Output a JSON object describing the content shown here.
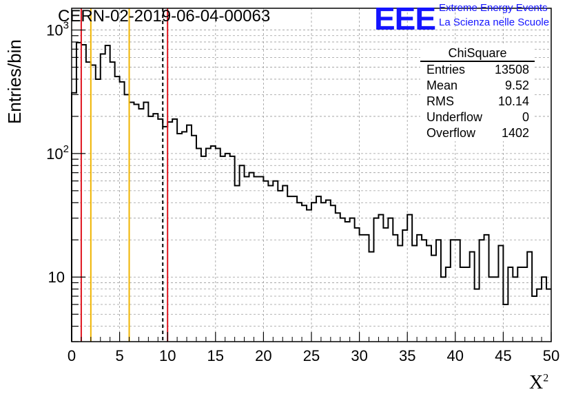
{
  "title": "CERN-02-2019-06-04-00063",
  "logo": {
    "mark": "EEE",
    "line1": "Extreme Energy Events",
    "line2": "La Scienza nelle Scuole",
    "color": "#1414ff"
  },
  "stats": {
    "title": "ChiSquare",
    "rows": [
      {
        "label": "Entries",
        "value": "13508"
      },
      {
        "label": "Mean",
        "value": "9.52"
      },
      {
        "label": "RMS",
        "value": "10.14"
      },
      {
        "label": "Underflow",
        "value": "0"
      },
      {
        "label": "Overflow",
        "value": "1402"
      }
    ]
  },
  "chart_data": {
    "type": "histogram",
    "ylabel": "Entries/bin",
    "xlabel": "X",
    "xlabel_sup": "2",
    "xlim": [
      0,
      50
    ],
    "ylim": [
      3,
      1500
    ],
    "yscale": "log",
    "grid": true,
    "x_ticks": [
      0,
      5,
      10,
      15,
      20,
      25,
      30,
      35,
      40,
      45,
      50
    ],
    "y_ticks": [
      {
        "value": 10,
        "label": "10",
        "sup": ""
      },
      {
        "value": 100,
        "label": "10",
        "sup": "2"
      },
      {
        "value": 1000,
        "label": "10",
        "sup": "3"
      }
    ],
    "bin_width": 0.5,
    "values": [
      310,
      790,
      760,
      550,
      520,
      400,
      640,
      750,
      550,
      420,
      380,
      300,
      260,
      250,
      230,
      260,
      200,
      210,
      190,
      165,
      180,
      190,
      145,
      150,
      170,
      140,
      110,
      95,
      110,
      115,
      110,
      95,
      100,
      95,
      55,
      80,
      65,
      70,
      65,
      65,
      60,
      55,
      60,
      50,
      55,
      45,
      45,
      40,
      38,
      35,
      40,
      45,
      40,
      42,
      38,
      33,
      30,
      28,
      30,
      25,
      22,
      22,
      16,
      30,
      32,
      25,
      30,
      22,
      18,
      24,
      32,
      18,
      22,
      20,
      18,
      15,
      20,
      10,
      12,
      20,
      20,
      12,
      12,
      16,
      8,
      20,
      22,
      10,
      10,
      18,
      6,
      12,
      10,
      12,
      12,
      16,
      7,
      8,
      10,
      8
    ],
    "vlines": [
      {
        "x": 1,
        "color": "#e0141e",
        "style": "solid"
      },
      {
        "x": 2,
        "color": "#f0b400",
        "style": "solid"
      },
      {
        "x": 6,
        "color": "#f0b400",
        "style": "solid"
      },
      {
        "x": 9.5,
        "color": "#000000",
        "style": "dashed"
      },
      {
        "x": 10,
        "color": "#e0141e",
        "style": "solid"
      }
    ]
  }
}
